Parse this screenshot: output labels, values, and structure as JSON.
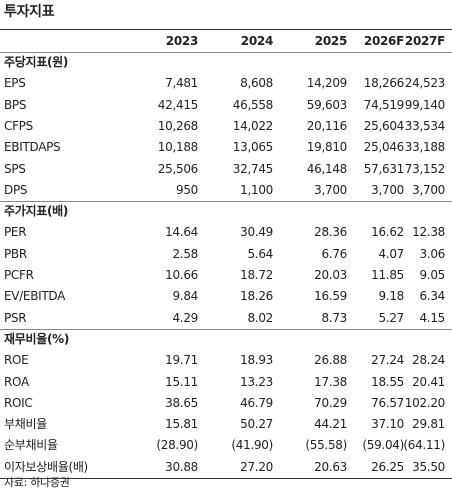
{
  "title": "투자지표",
  "table": {
    "header": [
      "2023",
      "2024",
      "2025",
      "2026F",
      "2027F"
    ],
    "sections": [
      {
        "label": "주당지표(원)",
        "rows": [
          {
            "label": "EPS",
            "values": [
              "7,481",
              "8,608",
              "14,209",
              "18,266",
              "24,523"
            ]
          },
          {
            "label": "BPS",
            "values": [
              "42,415",
              "46,558",
              "59,603",
              "74,519",
              "99,140"
            ]
          },
          {
            "label": "CFPS",
            "values": [
              "10,268",
              "14,022",
              "20,116",
              "25,604",
              "33,534"
            ]
          },
          {
            "label": "EBITDAPS",
            "values": [
              "10,188",
              "13,065",
              "19,810",
              "25,046",
              "33,188"
            ]
          },
          {
            "label": "SPS",
            "values": [
              "25,506",
              "32,745",
              "46,148",
              "57,631",
              "73,152"
            ]
          },
          {
            "label": "DPS",
            "values": [
              "950",
              "1,100",
              "3,700",
              "3,700",
              "3,700"
            ]
          }
        ]
      },
      {
        "label": "주가지표(배)",
        "rows": [
          {
            "label": "PER",
            "values": [
              "14.64",
              "30.49",
              "28.36",
              "16.62",
              "12.38"
            ]
          },
          {
            "label": "PBR",
            "values": [
              "2.58",
              "5.64",
              "6.76",
              "4.07",
              "3.06"
            ]
          },
          {
            "label": "PCFR",
            "values": [
              "10.66",
              "18.72",
              "20.03",
              "11.85",
              "9.05"
            ]
          },
          {
            "label": "EV/EBITDA",
            "values": [
              "9.84",
              "18.26",
              "16.59",
              "9.18",
              "6.34"
            ]
          },
          {
            "label": "PSR",
            "values": [
              "4.29",
              "8.02",
              "8.73",
              "5.27",
              "4.15"
            ]
          }
        ]
      },
      {
        "label": "재무비율(%)",
        "rows": [
          {
            "label": "ROE",
            "values": [
              "19.71",
              "18.93",
              "26.88",
              "27.24",
              "28.24"
            ]
          },
          {
            "label": "ROA",
            "values": [
              "15.11",
              "13.23",
              "17.38",
              "18.55",
              "20.41"
            ]
          },
          {
            "label": "ROIC",
            "values": [
              "38.65",
              "46.79",
              "70.29",
              "76.57",
              "102.20"
            ]
          },
          {
            "label": "부채비율",
            "values": [
              "15.81",
              "50.27",
              "44.21",
              "37.10",
              "29.81"
            ]
          },
          {
            "label": "순부채비율",
            "values": [
              "(28.90)",
              "(41.90)",
              "(55.58)",
              "(59.04)",
              "(64.11)"
            ]
          },
          {
            "label": "이자보상배율(배)",
            "values": [
              "30.88",
              "27.20",
              "20.63",
              "26.25",
              "35.50"
            ]
          }
        ]
      }
    ]
  },
  "source": "자료: 하나증권"
}
